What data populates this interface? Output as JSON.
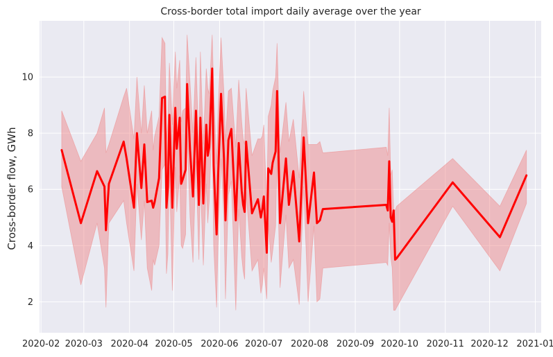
{
  "chart_data": {
    "type": "line",
    "title": "Cross-border total import daily average over the year",
    "xlabel": "",
    "ylabel": "Cross-border flow, GWh",
    "x_ticks": [
      "2020-02",
      "2020-03",
      "2020-04",
      "2020-05",
      "2020-06",
      "2020-07",
      "2020-08",
      "2020-09",
      "2020-10",
      "2020-11",
      "2020-12",
      "2021-01"
    ],
    "y_ticks": [
      2,
      4,
      6,
      8,
      10
    ],
    "xlim": [
      "2020-01-31",
      "2021-01-05"
    ],
    "ylim": [
      0.9,
      12.0
    ],
    "grid": true,
    "background": "#eaeaf2",
    "line_color": "#ff0000",
    "band_color": "#f08080",
    "series": [
      {
        "x": [
          "2020-02-15",
          "2020-02-28",
          "2020-03-10",
          "2020-03-15",
          "2020-03-16",
          "2020-03-18",
          "2020-03-28",
          "2020-03-30",
          "2020-04-04",
          "2020-04-06",
          "2020-04-09",
          "2020-04-11",
          "2020-04-13",
          "2020-04-16",
          "2020-04-17",
          "2020-04-18",
          "2020-04-21",
          "2020-04-23",
          "2020-04-25",
          "2020-04-26",
          "2020-04-27",
          "2020-04-28",
          "2020-04-30",
          "2020-05-02",
          "2020-05-03",
          "2020-05-05",
          "2020-05-06",
          "2020-05-07",
          "2020-05-09",
          "2020-05-10",
          "2020-05-12",
          "2020-05-14",
          "2020-05-16",
          "2020-05-18",
          "2020-05-19",
          "2020-05-21",
          "2020-05-23",
          "2020-05-24",
          "2020-05-25",
          "2020-05-27",
          "2020-05-28",
          "2020-05-30",
          "2020-05-31",
          "2020-06-02",
          "2020-06-04",
          "2020-06-05",
          "2020-06-07",
          "2020-06-09",
          "2020-06-12",
          "2020-06-14",
          "2020-06-16",
          "2020-06-17",
          "2020-06-18",
          "2020-06-19",
          "2020-06-23",
          "2020-06-27",
          "2020-06-29",
          "2020-06-30",
          "2020-07-01",
          "2020-07-03",
          "2020-07-04",
          "2020-07-06",
          "2020-07-07",
          "2020-07-09",
          "2020-07-10",
          "2020-07-12",
          "2020-07-16",
          "2020-07-18",
          "2020-07-21",
          "2020-07-25",
          "2020-07-28",
          "2020-07-31",
          "2020-08-04",
          "2020-08-06",
          "2020-08-08",
          "2020-08-10",
          "2020-09-22",
          "2020-09-23",
          "2020-09-24",
          "2020-09-25",
          "2020-09-26",
          "2020-09-27",
          "2020-09-28",
          "2020-09-29",
          "2020-11-06",
          "2020-12-08",
          "2020-12-26"
        ],
        "y": [
          7.4,
          4.8,
          6.65,
          6.1,
          4.55,
          6.2,
          7.7,
          7.1,
          5.35,
          8.0,
          6.05,
          7.6,
          5.55,
          5.6,
          5.35,
          5.55,
          6.4,
          9.25,
          9.3,
          5.35,
          6.1,
          8.65,
          5.35,
          8.9,
          7.45,
          8.55,
          6.2,
          6.35,
          6.7,
          9.75,
          7.4,
          5.75,
          8.8,
          5.45,
          8.55,
          5.5,
          8.3,
          7.2,
          7.5,
          10.3,
          6.85,
          4.4,
          6.45,
          9.4,
          7.1,
          4.9,
          7.75,
          8.15,
          4.9,
          7.65,
          5.95,
          5.45,
          5.2,
          7.7,
          5.15,
          5.65,
          5.0,
          5.3,
          5.75,
          3.75,
          6.75,
          6.55,
          6.95,
          7.35,
          9.5,
          4.8,
          7.1,
          5.45,
          6.65,
          4.15,
          7.85,
          4.8,
          6.6,
          4.8,
          4.9,
          5.3,
          5.45,
          5.25,
          7.0,
          5.0,
          4.85,
          5.25,
          3.5,
          3.55,
          6.25,
          4.3,
          6.5
        ],
        "lower": [
          6.1,
          2.6,
          4.8,
          3.2,
          1.8,
          4.8,
          5.6,
          4.8,
          3.1,
          6.2,
          4.2,
          5.6,
          3.2,
          2.4,
          3.5,
          3.3,
          4.0,
          6.7,
          6.9,
          3.0,
          3.7,
          6.8,
          2.4,
          6.8,
          5.2,
          6.5,
          4.0,
          3.9,
          4.4,
          8.0,
          5.0,
          3.4,
          7.0,
          3.5,
          6.3,
          3.3,
          6.2,
          4.8,
          5.6,
          8.4,
          4.0,
          1.8,
          4.1,
          7.1,
          4.9,
          2.1,
          5.8,
          6.3,
          1.7,
          5.3,
          3.6,
          3.1,
          2.8,
          5.9,
          3.1,
          3.5,
          2.3,
          2.6,
          3.2,
          2.1,
          4.8,
          3.4,
          3.8,
          4.7,
          7.2,
          2.5,
          5.1,
          3.2,
          3.5,
          1.9,
          6.1,
          2.0,
          4.7,
          2.0,
          2.1,
          3.2,
          3.4,
          3.3,
          4.8,
          3.6,
          3.2,
          1.7,
          1.7,
          1.8,
          5.4,
          3.1,
          5.5
        ],
        "upper": [
          8.8,
          7.0,
          8.0,
          8.9,
          7.3,
          7.6,
          9.3,
          9.6,
          7.8,
          10.0,
          8.0,
          9.7,
          8.0,
          8.8,
          7.4,
          7.9,
          8.6,
          11.4,
          11.2,
          7.8,
          8.4,
          10.5,
          8.3,
          10.9,
          9.6,
          10.6,
          8.4,
          8.8,
          8.9,
          11.5,
          9.8,
          8.0,
          10.7,
          7.5,
          10.9,
          7.6,
          10.3,
          9.6,
          9.4,
          11.5,
          9.6,
          6.9,
          8.8,
          11.4,
          9.4,
          7.7,
          9.5,
          9.6,
          7.5,
          9.9,
          8.4,
          7.8,
          7.6,
          9.6,
          7.2,
          7.8,
          7.8,
          7.9,
          8.3,
          5.4,
          8.6,
          9.0,
          9.5,
          10.0,
          11.2,
          7.3,
          9.1,
          7.7,
          8.5,
          6.4,
          9.5,
          7.6,
          7.6,
          7.6,
          7.7,
          7.3,
          7.5,
          7.2,
          8.9,
          6.5,
          6.7,
          5.3,
          5.25,
          5.4,
          7.1,
          5.4,
          7.4
        ]
      }
    ]
  }
}
